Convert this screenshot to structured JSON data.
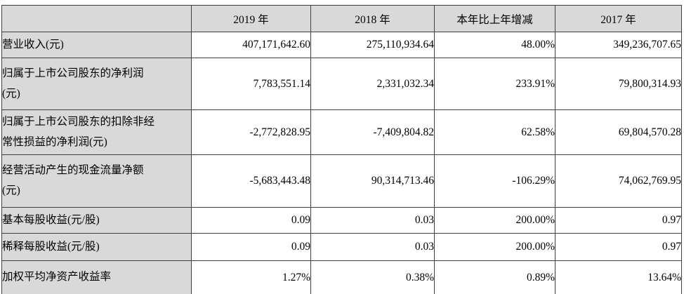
{
  "table": {
    "header": [
      "",
      "2019 年",
      "2018 年",
      "本年比上年增减",
      "2017 年"
    ],
    "rows": [
      {
        "label": "营业收入(元)",
        "values": [
          "407,171,642.60",
          "275,110,934.64",
          "48.00%",
          "349,236,707.65"
        ]
      },
      {
        "label": "归属于上市公司股东的净利润\n(元)",
        "values": [
          "7,783,551.14",
          "2,331,032.34",
          "233.91%",
          "79,800,314.93"
        ]
      },
      {
        "label": "归属于上市公司股东的扣除非经\n常性损益的净利润(元)",
        "values": [
          "-2,772,828.95",
          "-7,409,804.82",
          "62.58%",
          "69,804,570.28"
        ]
      },
      {
        "label": "经营活动产生的现金流量净额\n(元)",
        "values": [
          "-5,683,443.48",
          "90,314,713.46",
          "-106.29%",
          "74,062,769.95"
        ]
      },
      {
        "label": "基本每股收益(元/股)",
        "values": [
          "0.09",
          "0.03",
          "200.00%",
          "0.97"
        ]
      },
      {
        "label": "稀释每股收益(元/股)",
        "values": [
          "0.09",
          "0.03",
          "200.00%",
          "0.97"
        ]
      },
      {
        "label": "加权平均净资产收益率",
        "values": [
          "1.27%",
          "0.38%",
          "0.89%",
          "13.64%"
        ]
      }
    ],
    "colors": {
      "header_bg": "#d9d9d9",
      "label_bg": "#d9d9d9",
      "border": "#3f3f3f",
      "text": "#000000"
    }
  }
}
